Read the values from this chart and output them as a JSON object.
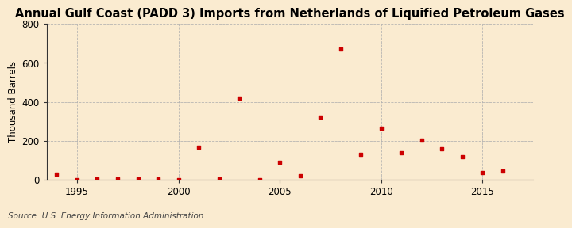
{
  "title": "Annual Gulf Coast (PADD 3) Imports from Netherlands of Liquified Petroleum Gases",
  "ylabel": "Thousand Barrels",
  "source": "Source: U.S. Energy Information Administration",
  "background_color": "#faebd0",
  "marker_color": "#cc0000",
  "years": [
    1994,
    1995,
    1996,
    1997,
    1998,
    1999,
    2000,
    2001,
    2002,
    2003,
    2004,
    2005,
    2006,
    2007,
    2008,
    2009,
    2010,
    2011,
    2012,
    2013,
    2014,
    2015,
    2016
  ],
  "values": [
    30,
    2,
    5,
    5,
    4,
    4,
    2,
    165,
    3,
    420,
    2,
    90,
    20,
    320,
    670,
    130,
    265,
    140,
    205,
    160,
    120,
    35,
    45
  ],
  "xlim": [
    1993.5,
    2017.5
  ],
  "ylim": [
    0,
    800
  ],
  "yticks": [
    0,
    200,
    400,
    600,
    800
  ],
  "xticks": [
    1995,
    2000,
    2005,
    2010,
    2015
  ],
  "grid_color": "#b0b0b0",
  "title_fontsize": 10.5,
  "label_fontsize": 8.5,
  "tick_fontsize": 8.5,
  "source_fontsize": 7.5
}
